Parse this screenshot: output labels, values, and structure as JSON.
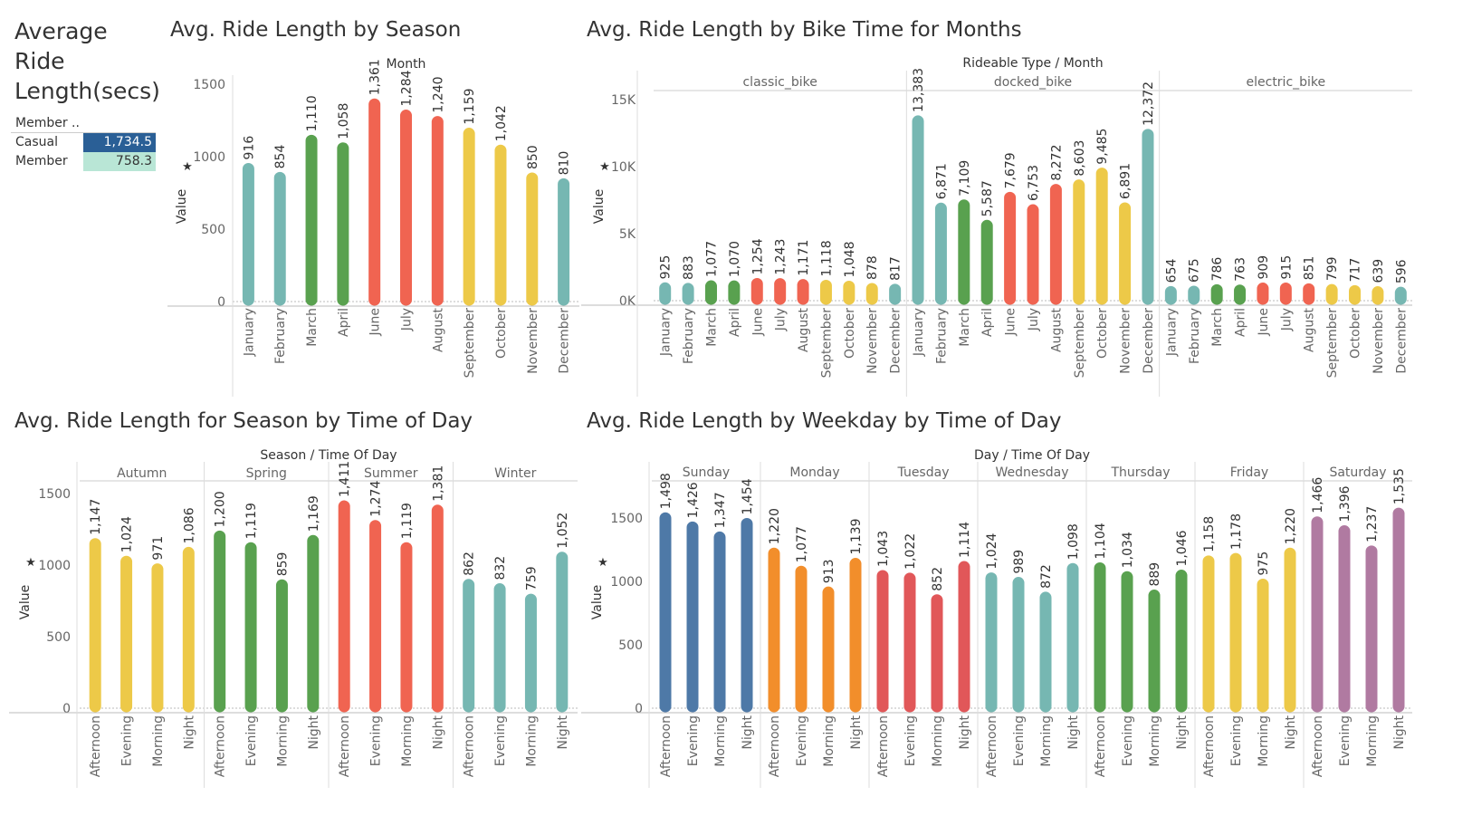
{
  "kpi": {
    "title": "Average Ride Length(secs)",
    "header": "Member ..",
    "rows": [
      {
        "label": "Casual",
        "value": "1,734.5",
        "bg": "#2a5f96",
        "fg": "#ffffff"
      },
      {
        "label": "Member",
        "value": "758.3",
        "bg": "#b9e6d6",
        "fg": "#333333"
      }
    ]
  },
  "chart_data": [
    {
      "id": "season",
      "type": "bar",
      "title": "Avg. Ride Length by Season",
      "header": "Month",
      "ylabel": "Value",
      "ylim": [
        0,
        1500
      ],
      "yticks": [
        0,
        500,
        1000,
        1500
      ],
      "ytick_labels": [
        "0",
        "500",
        "1000",
        "1500"
      ],
      "groups": [
        ""
      ],
      "categories": [
        "January",
        "February",
        "March",
        "April",
        "June",
        "July",
        "August",
        "September",
        "October",
        "November",
        "December"
      ],
      "series": [
        {
          "values": [
            916,
            854,
            1110,
            1058,
            1361,
            1284,
            1240,
            1159,
            1042,
            850,
            810
          ],
          "labels": [
            "916",
            "854",
            "1,110",
            "1,058",
            "1,361",
            "1,284",
            "1,240",
            "1,159",
            "1,042",
            "850",
            "810"
          ],
          "colors": [
            "#76b7b2",
            "#76b7b2",
            "#59a14f",
            "#59a14f",
            "#f06451",
            "#f06451",
            "#f06451",
            "#edc948",
            "#edc948",
            "#edc948",
            "#76b7b2"
          ]
        }
      ]
    },
    {
      "id": "bike",
      "type": "bar",
      "title": "Avg. Ride Length by Bike Time for Months",
      "header": "Rideable Type  /  Month",
      "ylabel": "Value",
      "ylim": [
        0,
        15000
      ],
      "yticks": [
        0,
        5000,
        10000,
        15000
      ],
      "ytick_labels": [
        "0K",
        "5K",
        "10K",
        "15K"
      ],
      "groups": [
        "classic_bike",
        "docked_bike",
        "electric_bike"
      ],
      "categories": [
        "January",
        "February",
        "March",
        "April",
        "June",
        "July",
        "August",
        "September",
        "October",
        "November",
        "December"
      ],
      "series": [
        {
          "name": "classic_bike",
          "values": [
            925,
            883,
            1077,
            1070,
            1254,
            1243,
            1171,
            1118,
            1048,
            878,
            817
          ],
          "labels": [
            "925",
            "883",
            "1,077",
            "1,070",
            "1,254",
            "1,243",
            "1,171",
            "1,118",
            "1,048",
            "878",
            "817"
          ],
          "colors": [
            "#76b7b2",
            "#76b7b2",
            "#59a14f",
            "#59a14f",
            "#f06451",
            "#f06451",
            "#f06451",
            "#edc948",
            "#edc948",
            "#edc948",
            "#76b7b2"
          ]
        },
        {
          "name": "docked_bike",
          "values": [
            13383,
            6871,
            7109,
            5587,
            7679,
            6753,
            8272,
            8603,
            9485,
            6891,
            12372
          ],
          "labels": [
            "13,383",
            "6,871",
            "7,109",
            "5,587",
            "7,679",
            "6,753",
            "8,272",
            "8,603",
            "9,485",
            "6,891",
            "12,372"
          ],
          "colors": [
            "#76b7b2",
            "#76b7b2",
            "#59a14f",
            "#59a14f",
            "#f06451",
            "#f06451",
            "#f06451",
            "#edc948",
            "#edc948",
            "#edc948",
            "#76b7b2"
          ]
        },
        {
          "name": "electric_bike",
          "values": [
            654,
            675,
            786,
            763,
            909,
            915,
            851,
            799,
            717,
            639,
            596
          ],
          "labels": [
            "654",
            "675",
            "786",
            "763",
            "909",
            "915",
            "851",
            "799",
            "717",
            "639",
            "596"
          ],
          "colors": [
            "#76b7b2",
            "#76b7b2",
            "#59a14f",
            "#59a14f",
            "#f06451",
            "#f06451",
            "#f06451",
            "#edc948",
            "#edc948",
            "#edc948",
            "#76b7b2"
          ]
        }
      ]
    },
    {
      "id": "seasontod",
      "type": "bar",
      "title": "Avg. Ride Length for Season by Time of Day",
      "header": "Season  /  Time Of Day",
      "ylabel": "Value",
      "ylim": [
        0,
        1500
      ],
      "yticks": [
        0,
        500,
        1000,
        1500
      ],
      "ytick_labels": [
        "0",
        "500",
        "1000",
        "1500"
      ],
      "groups": [
        "Autumn",
        "Spring",
        "Summer",
        "Winter"
      ],
      "categories": [
        "Afternoon",
        "Evening",
        "Morning",
        "Night"
      ],
      "series": [
        {
          "name": "Autumn",
          "values": [
            1147,
            1024,
            971,
            1086
          ],
          "labels": [
            "1,147",
            "1,024",
            "971",
            "1,086"
          ],
          "color": "#edc948"
        },
        {
          "name": "Spring",
          "values": [
            1200,
            1119,
            859,
            1169
          ],
          "labels": [
            "1,200",
            "1,119",
            "859",
            "1,169"
          ],
          "color": "#59a14f"
        },
        {
          "name": "Summer",
          "values": [
            1411,
            1274,
            1119,
            1381
          ],
          "labels": [
            "1,411",
            "1,274",
            "1,119",
            "1,381"
          ],
          "color": "#f06451"
        },
        {
          "name": "Winter",
          "values": [
            862,
            832,
            759,
            1052
          ],
          "labels": [
            "862",
            "832",
            "759",
            "1,052"
          ],
          "color": "#76b7b2"
        }
      ]
    },
    {
      "id": "weekday",
      "type": "bar",
      "title": "Avg. Ride Length by Weekday by Time of Day",
      "header": "Day  /  Time Of Day",
      "ylabel": "Value",
      "ylim": [
        0,
        1500
      ],
      "yticks": [
        0,
        500,
        1000,
        1500
      ],
      "ytick_labels": [
        "0",
        "500",
        "1000",
        "1500"
      ],
      "groups": [
        "Sunday",
        "Monday",
        "Tuesday",
        "Wednesday",
        "Thursday",
        "Friday",
        "Saturday"
      ],
      "categories": [
        "Afternoon",
        "Evening",
        "Morning",
        "Night"
      ],
      "series": [
        {
          "name": "Sunday",
          "values": [
            1498,
            1426,
            1347,
            1454
          ],
          "labels": [
            "1,498",
            "1,426",
            "1,347",
            "1,454"
          ],
          "color": "#4e79a7"
        },
        {
          "name": "Monday",
          "values": [
            1220,
            1077,
            913,
            1139
          ],
          "labels": [
            "1,220",
            "1,077",
            "913",
            "1,139"
          ],
          "color": "#f28e2b"
        },
        {
          "name": "Tuesday",
          "values": [
            1043,
            1022,
            852,
            1114
          ],
          "labels": [
            "1,043",
            "1,022",
            "852",
            "1,114"
          ],
          "color": "#e15759"
        },
        {
          "name": "Wednesday",
          "values": [
            1024,
            989,
            872,
            1098
          ],
          "labels": [
            "1,024",
            "989",
            "872",
            "1,098"
          ],
          "color": "#76b7b2"
        },
        {
          "name": "Thursday",
          "values": [
            1104,
            1034,
            889,
            1046
          ],
          "labels": [
            "1,104",
            "1,034",
            "889",
            "1,046"
          ],
          "color": "#59a14f"
        },
        {
          "name": "Friday",
          "values": [
            1158,
            1178,
            975,
            1220
          ],
          "labels": [
            "1,158",
            "1,178",
            "975",
            "1,220"
          ],
          "color": "#edc948"
        },
        {
          "name": "Saturday",
          "values": [
            1466,
            1396,
            1237,
            1535
          ],
          "labels": [
            "1,466",
            "1,396",
            "1,237",
            "1,535"
          ],
          "color": "#b07aa1"
        }
      ]
    }
  ]
}
